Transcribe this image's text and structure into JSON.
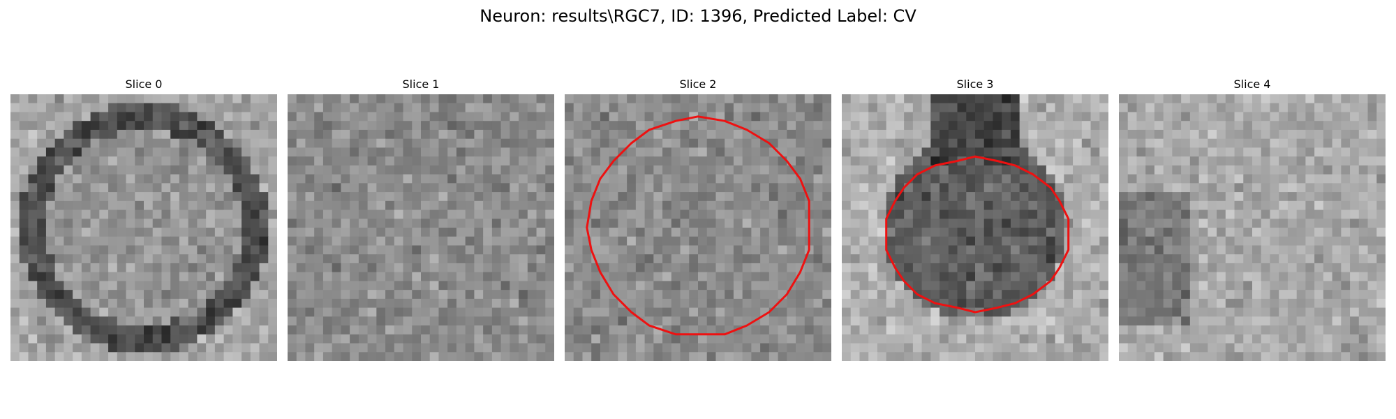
{
  "figure": {
    "title": "Neuron: results\\RGC7, ID: 1396, Predicted Label: CV"
  },
  "panels": [
    {
      "title": "Slice 0",
      "pattern": "dark-ring",
      "outline": false
    },
    {
      "title": "Slice 1",
      "pattern": "noise",
      "outline": false
    },
    {
      "title": "Slice 2",
      "pattern": "noise",
      "outline": true
    },
    {
      "title": "Slice 3",
      "pattern": "dark-blob",
      "outline": true
    },
    {
      "title": "Slice 4",
      "pattern": "light-noise",
      "outline": false
    }
  ],
  "colors": {
    "outline": "#ee1111",
    "background": "#ffffff"
  }
}
